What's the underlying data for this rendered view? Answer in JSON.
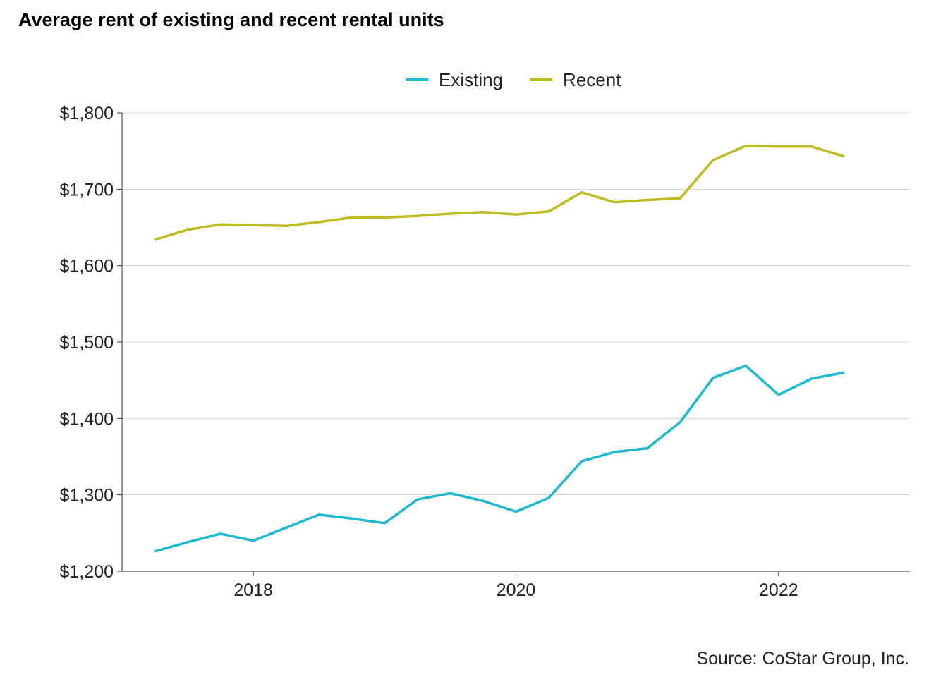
{
  "chart_data": {
    "type": "line",
    "title": "Average rent of existing and recent rental units",
    "xlabel": "",
    "ylabel": "",
    "source": "Source: CoStar Group, Inc.",
    "xlim": [
      2017.0,
      2023.0
    ],
    "ylim": [
      1200,
      1800
    ],
    "x_ticks": [
      2018,
      2020,
      2022
    ],
    "x_tick_labels": [
      "2018",
      "2020",
      "2022"
    ],
    "y_ticks": [
      1200,
      1300,
      1400,
      1500,
      1600,
      1700,
      1800
    ],
    "y_tick_labels": [
      "$1,200",
      "$1,300",
      "$1,400",
      "$1,500",
      "$1,600",
      "$1,700",
      "$1,800"
    ],
    "grid": "horizontal",
    "legend_position": "top",
    "x": [
      2017.25,
      2017.5,
      2017.75,
      2018.0,
      2018.25,
      2018.5,
      2018.75,
      2019.0,
      2019.25,
      2019.5,
      2019.75,
      2020.0,
      2020.25,
      2020.5,
      2020.75,
      2021.0,
      2021.25,
      2021.5,
      2021.75,
      2022.0,
      2022.25,
      2022.5
    ],
    "series": [
      {
        "name": "Existing",
        "color": "#1db9cf",
        "values": [
          1226,
          1238,
          1249,
          1240,
          1257,
          1274,
          1269,
          1263,
          1294,
          1302,
          1292,
          1278,
          1296,
          1344,
          1356,
          1361,
          1395,
          1453,
          1469,
          1431,
          1452,
          1460
        ]
      },
      {
        "name": "Recent",
        "color": "#bdbd22",
        "values": [
          1634,
          1647,
          1654,
          1653,
          1652,
          1657,
          1663,
          1663,
          1665,
          1668,
          1670,
          1667,
          1671,
          1696,
          1683,
          1686,
          1688,
          1738,
          1757,
          1756,
          1756,
          1743
        ]
      }
    ]
  }
}
